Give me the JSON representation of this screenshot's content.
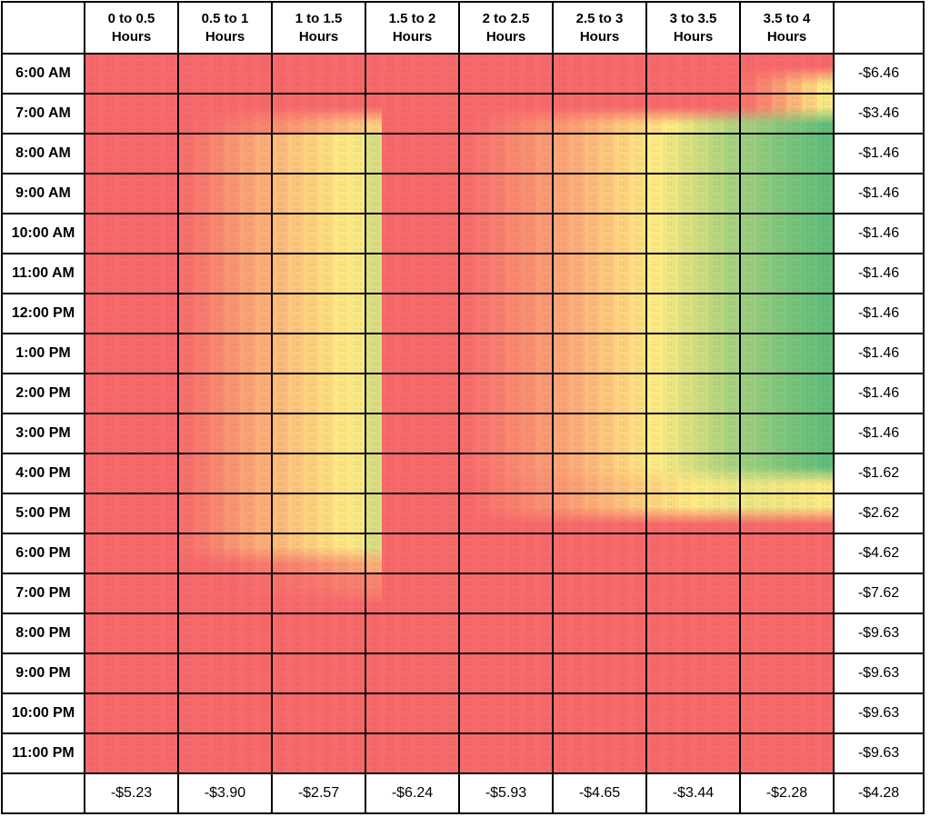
{
  "chart_data": {
    "type": "heatmap",
    "x_categories": [
      "0 to 0.5 Hours",
      "0.5 to 1 Hours",
      "1 to 1.5 Hours",
      "1.5 to 2 Hours",
      "2 to 2.5 Hours",
      "2.5 to 3 Hours",
      "3 to 3.5 Hours",
      "3.5 to 4 Hours"
    ],
    "y_categories": [
      "6:00 AM",
      "7:00 AM",
      "8:00 AM",
      "9:00 AM",
      "10:00 AM",
      "11:00 AM",
      "12:00 PM",
      "1:00 PM",
      "2:00 PM",
      "3:00 PM",
      "4:00 PM",
      "5:00 PM",
      "6:00 PM",
      "7:00 PM",
      "8:00 PM",
      "9:00 PM",
      "10:00 PM",
      "11:00 PM"
    ],
    "row_totals": [
      "-$6.46",
      "-$3.46",
      "-$1.46",
      "-$1.46",
      "-$1.46",
      "-$1.46",
      "-$1.46",
      "-$1.46",
      "-$1.46",
      "-$1.46",
      "-$1.62",
      "-$2.62",
      "-$4.62",
      "-$7.62",
      "-$9.63",
      "-$9.63",
      "-$9.63",
      "-$9.63"
    ],
    "col_totals": [
      "-$5.23",
      "-$3.90",
      "-$2.57",
      "-$6.24",
      "-$5.93",
      "-$4.65",
      "-$3.44",
      "-$2.28"
    ],
    "grand_total": "-$4.28",
    "color_scale": {
      "low": "#F8696B",
      "mid": "#FFEB84",
      "high": "#63BE7B"
    },
    "subcolumns_per_category": 6,
    "legend_position": "none",
    "intensity_patterns": {
      "red": [
        0,
        0,
        0,
        0,
        0,
        0,
        0,
        0,
        0,
        0,
        0,
        0,
        0,
        0,
        0,
        0,
        0,
        0,
        0,
        0,
        0,
        0,
        0,
        0,
        0,
        0,
        0,
        0,
        0,
        0,
        0,
        0,
        0,
        0,
        0,
        0,
        0,
        0,
        0,
        0,
        0,
        0,
        0,
        0,
        0,
        0,
        0,
        0
      ],
      "full": [
        0,
        0,
        0,
        0,
        0,
        0,
        0.03,
        0.07,
        0.12,
        0.17,
        0.22,
        0.27,
        0.32,
        0.36,
        0.4,
        0.44,
        0.48,
        0.52,
        0.62,
        0,
        0,
        0,
        0,
        0,
        0.02,
        0.05,
        0.08,
        0.12,
        0.15,
        0.19,
        0.23,
        0.27,
        0.32,
        0.36,
        0.41,
        0.45,
        0.5,
        0.55,
        0.61,
        0.66,
        0.72,
        0.78,
        0.82,
        0.86,
        0.9,
        0.94,
        0.97,
        1
      ],
      "dawn": [
        0,
        0,
        0,
        0,
        0,
        0,
        0,
        0,
        0,
        0,
        0,
        0,
        0,
        0,
        0,
        0,
        0,
        0,
        0,
        0,
        0,
        0,
        0,
        0,
        0,
        0,
        0,
        0,
        0,
        0,
        0,
        0,
        0,
        0,
        0,
        0,
        0,
        0,
        0,
        0,
        0,
        0,
        0.05,
        0.12,
        0.2,
        0.3,
        0.4,
        0.52
      ],
      "rise": [
        0,
        0,
        0,
        0,
        0,
        0,
        0,
        0.01,
        0.03,
        0.06,
        0.09,
        0.12,
        0.15,
        0.19,
        0.23,
        0.27,
        0.31,
        0.35,
        0.4,
        0,
        0,
        0,
        0,
        0,
        0,
        0.02,
        0.05,
        0.08,
        0.11,
        0.15,
        0.18,
        0.22,
        0.27,
        0.31,
        0.36,
        0.4,
        0.45,
        0.5,
        0.56,
        0.62,
        0.68,
        0.74,
        0.79,
        0.84,
        0.88,
        0.92,
        0.96,
        1
      ],
      "dusk": [
        0,
        0,
        0,
        0,
        0,
        0,
        0.03,
        0.07,
        0.12,
        0.17,
        0.22,
        0.27,
        0.32,
        0.36,
        0.4,
        0.44,
        0.48,
        0.52,
        0.62,
        0,
        0,
        0,
        0,
        0,
        0,
        0.03,
        0.06,
        0.09,
        0.12,
        0.15,
        0.18,
        0.22,
        0.26,
        0.3,
        0.34,
        0.38,
        0.42,
        0.45,
        0.48,
        0.51,
        0.53,
        0.55,
        0.56,
        0.55,
        0.54,
        0.53,
        0.52,
        0.51
      ],
      "left_only": [
        0,
        0,
        0,
        0,
        0,
        0,
        0.03,
        0.07,
        0.12,
        0.17,
        0.22,
        0.27,
        0.32,
        0.36,
        0.4,
        0.44,
        0.48,
        0.52,
        0.62,
        0,
        0,
        0,
        0,
        0,
        0,
        0,
        0,
        0,
        0,
        0,
        0,
        0,
        0,
        0,
        0,
        0,
        0,
        0,
        0,
        0,
        0,
        0,
        0,
        0,
        0,
        0,
        0,
        0
      ],
      "fade": [
        0,
        0,
        0,
        0,
        0,
        0,
        0,
        0,
        0.01,
        0.02,
        0.04,
        0.06,
        0.08,
        0.1,
        0.13,
        0.16,
        0.19,
        0.22,
        0.26,
        0,
        0,
        0,
        0,
        0,
        0,
        0,
        0,
        0,
        0,
        0,
        0,
        0,
        0,
        0,
        0,
        0,
        0,
        0,
        0,
        0,
        0,
        0,
        0,
        0,
        0,
        0,
        0,
        0
      ],
      "ember": [
        0,
        0,
        0,
        0,
        0,
        0,
        0,
        0,
        0,
        0,
        0.01,
        0.02,
        0.03,
        0.04,
        0.05,
        0.06,
        0.08,
        0.09,
        0.11,
        0,
        0,
        0,
        0,
        0,
        0,
        0,
        0,
        0,
        0,
        0,
        0,
        0,
        0,
        0,
        0,
        0,
        0,
        0,
        0,
        0,
        0,
        0,
        0,
        0,
        0,
        0,
        0,
        0
      ]
    },
    "rows": [
      {
        "time": "6:00 AM",
        "total": "-$6.46",
        "top": "red",
        "bottom": "dawn"
      },
      {
        "time": "7:00 AM",
        "total": "-$3.46",
        "top": "dawn",
        "bottom": "rise"
      },
      {
        "time": "8:00 AM",
        "total": "-$1.46",
        "top": "full",
        "bottom": "full"
      },
      {
        "time": "9:00 AM",
        "total": "-$1.46",
        "top": "full",
        "bottom": "full"
      },
      {
        "time": "10:00 AM",
        "total": "-$1.46",
        "top": "full",
        "bottom": "full"
      },
      {
        "time": "11:00 AM",
        "total": "-$1.46",
        "top": "full",
        "bottom": "full"
      },
      {
        "time": "12:00 PM",
        "total": "-$1.46",
        "top": "full",
        "bottom": "full"
      },
      {
        "time": "1:00 PM",
        "total": "-$1.46",
        "top": "full",
        "bottom": "full"
      },
      {
        "time": "2:00 PM",
        "total": "-$1.46",
        "top": "full",
        "bottom": "full"
      },
      {
        "time": "3:00 PM",
        "total": "-$1.46",
        "top": "full",
        "bottom": "full"
      },
      {
        "time": "4:00 PM",
        "total": "-$1.62",
        "top": "full",
        "bottom": "dusk"
      },
      {
        "time": "5:00 PM",
        "total": "-$2.62",
        "top": "dusk",
        "bottom": "left_only"
      },
      {
        "time": "6:00 PM",
        "total": "-$4.62",
        "top": "left_only",
        "bottom": "fade"
      },
      {
        "time": "7:00 PM",
        "total": "-$7.62",
        "top": "ember",
        "bottom": "red"
      },
      {
        "time": "8:00 PM",
        "total": "-$9.63",
        "top": "red",
        "bottom": "red"
      },
      {
        "time": "9:00 PM",
        "total": "-$9.63",
        "top": "red",
        "bottom": "red"
      },
      {
        "time": "10:00 PM",
        "total": "-$9.63",
        "top": "red",
        "bottom": "red"
      },
      {
        "time": "11:00 PM",
        "total": "-$9.63",
        "top": "red",
        "bottom": "red"
      }
    ]
  }
}
